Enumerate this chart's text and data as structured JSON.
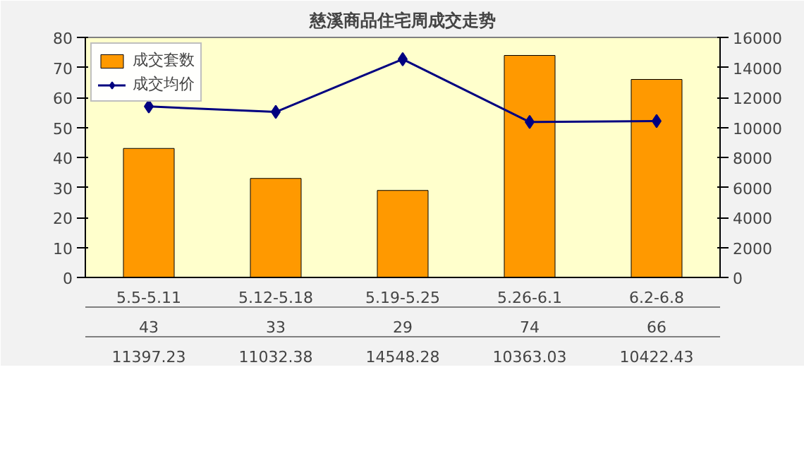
{
  "chart_data": {
    "type": "bar",
    "title": "慈溪商品住宅周成交走势",
    "categories": [
      "5.5-5.11",
      "5.12-5.18",
      "5.19-5.25",
      "5.26-6.1",
      "6.2-6.8"
    ],
    "series": [
      {
        "name": "成交套数",
        "color": "#ff9900",
        "values": [
          43,
          33,
          29,
          74,
          66
        ]
      },
      {
        "name": "成交均价",
        "type": "line",
        "axis": "y2",
        "color": "#000080",
        "marker": "diamond",
        "values": [
          11397.23,
          11032.38,
          14548.28,
          10363.03,
          10422.43
        ]
      }
    ],
    "ylim": [
      0,
      80
    ],
    "yticks": [
      0,
      10,
      20,
      30,
      40,
      50,
      60,
      70,
      80
    ],
    "y2lim": [
      0,
      16000
    ],
    "y2ticks": [
      0,
      2000,
      4000,
      6000,
      8000,
      10000,
      12000,
      14000,
      16000
    ],
    "data_labels": true,
    "legend": "top left",
    "grid": false
  }
}
